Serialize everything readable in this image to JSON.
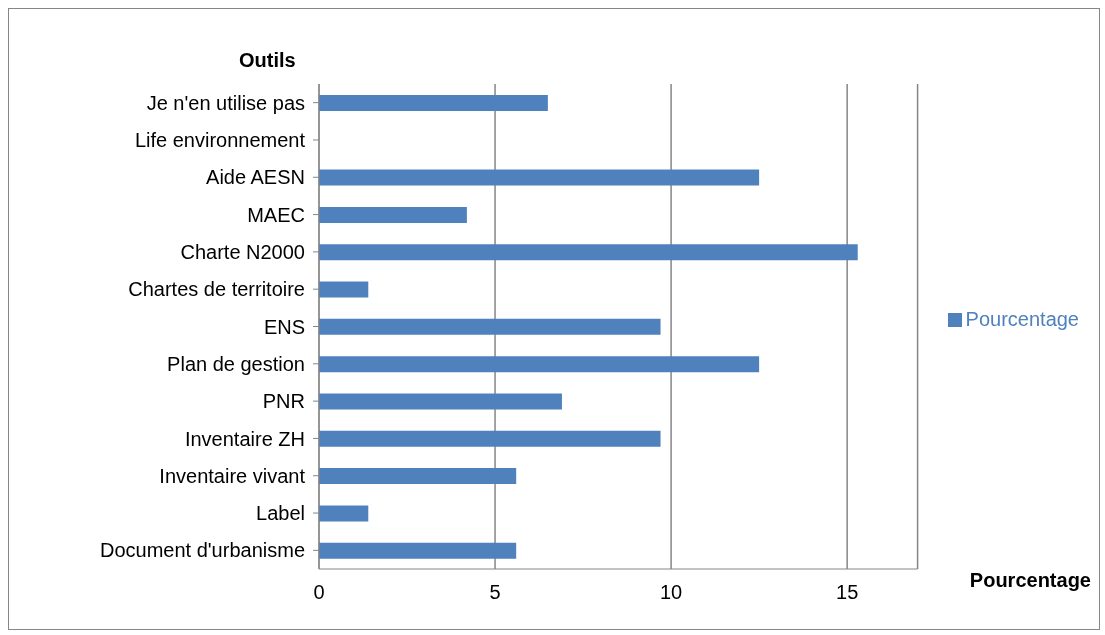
{
  "chart_data": {
    "type": "bar",
    "orientation": "horizontal",
    "xlabel": "Pourcentage",
    "ylabel": "Outils",
    "categories": [
      "Je n'en utilise pas",
      "Life environnement",
      "Aide AESN",
      "MAEC",
      "Charte N2000",
      "Chartes de territoire",
      "ENS",
      "Plan de gestion",
      "PNR",
      "Inventaire ZH",
      "Inventaire vivant",
      "Label",
      "Document d'urbanisme"
    ],
    "series": [
      {
        "name": "Pourcentage",
        "color": "#4f81bd",
        "values": [
          6.5,
          0,
          12.5,
          4.2,
          15.3,
          1.4,
          9.7,
          12.5,
          6.9,
          9.7,
          5.6,
          1.4,
          5.6
        ]
      }
    ],
    "xlim": [
      0,
      17
    ],
    "xticks": [
      0,
      5,
      10,
      15
    ],
    "grid": "x",
    "legend": "right"
  }
}
